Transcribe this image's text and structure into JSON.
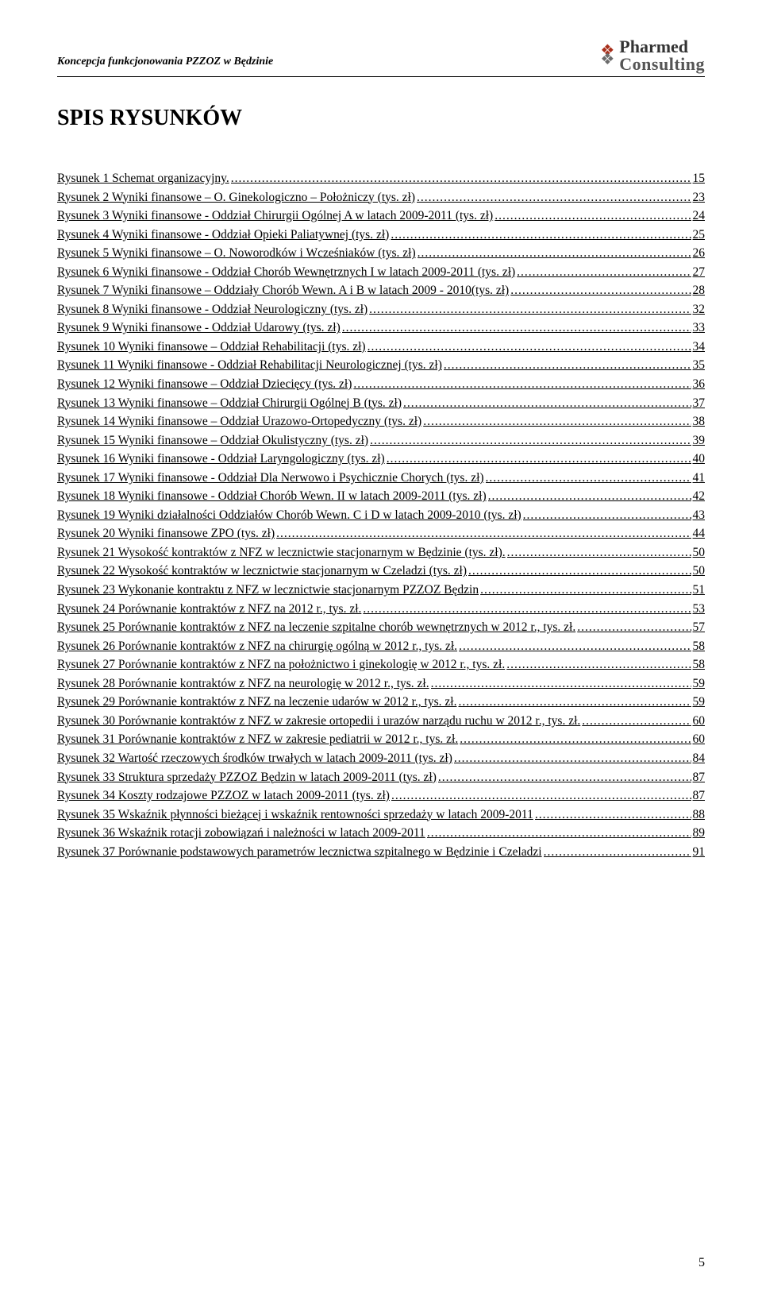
{
  "header": {
    "left": "Koncepcja funkcjonowania PZZOZ w Będzinie",
    "logo_line1": "Pharmed",
    "logo_line2": "Consulting",
    "chevron_color_top": "#a82f1b",
    "chevron_color_bottom": "#6b6b6b"
  },
  "title": "SPIS RYSUNKÓW",
  "toc": [
    {
      "label": "Rysunek 1 Schemat organizacyjny.",
      "page": "15"
    },
    {
      "label": "Rysunek 2 Wyniki finansowe – O. Ginekologiczno – Położniczy (tys. zł)",
      "page": "23"
    },
    {
      "label": "Rysunek 3 Wyniki finansowe - Oddział Chirurgii Ogólnej A w latach 2009-2011 (tys. zł)",
      "page": "24"
    },
    {
      "label": "Rysunek 4 Wyniki finansowe - Oddział Opieki Paliatywnej (tys. zł)",
      "page": "25"
    },
    {
      "label": "Rysunek 5 Wyniki finansowe – O. Noworodków i Wcześniaków (tys. zł)",
      "page": "26"
    },
    {
      "label": "Rysunek 6 Wyniki finansowe - Oddział Chorób Wewnętrznych I w latach 2009-2011 (tys. zł)",
      "page": "27"
    },
    {
      "label": "Rysunek 7 Wyniki finansowe – Oddziały Chorób Wewn. A i B w latach 2009 - 2010(tys. zł)",
      "page": "28"
    },
    {
      "label": "Rysunek 8 Wyniki finansowe - Oddział Neurologiczny (tys. zł)",
      "page": "32"
    },
    {
      "label": "Rysunek 9 Wyniki finansowe - Oddział Udarowy (tys. zł)",
      "page": "33"
    },
    {
      "label": "Rysunek 10 Wyniki finansowe – Oddział Rehabilitacji (tys. zł)",
      "page": "34"
    },
    {
      "label": "Rysunek 11 Wyniki finansowe - Oddział Rehabilitacji Neurologicznej (tys. zł)",
      "page": "35"
    },
    {
      "label": "Rysunek 12 Wyniki finansowe – Oddział Dziecięcy (tys. zł)",
      "page": "36"
    },
    {
      "label": "Rysunek 13 Wyniki finansowe – Oddział Chirurgii Ogólnej B (tys. zł)",
      "page": "37"
    },
    {
      "label": "Rysunek 14 Wyniki finansowe – Oddział Urazowo-Ortopedyczny (tys. zł)",
      "page": "38"
    },
    {
      "label": "Rysunek 15 Wyniki finansowe – Oddział Okulistyczny (tys. zł)",
      "page": "39"
    },
    {
      "label": "Rysunek 16 Wyniki finansowe - Oddział Laryngologiczny (tys. zł)",
      "page": "40"
    },
    {
      "label": "Rysunek 17 Wyniki finansowe - Oddział Dla Nerwowo i Psychicznie Chorych (tys. zł)",
      "page": "41"
    },
    {
      "label": "Rysunek 18 Wyniki finansowe - Oddział Chorób Wewn. II w latach 2009-2011 (tys. zł)",
      "page": "42"
    },
    {
      "label": "Rysunek 19 Wyniki działalności Oddziałów Chorób Wewn. C i D w latach 2009-2010 (tys. zł)",
      "page": "43"
    },
    {
      "label": "Rysunek 20 Wyniki finansowe ZPO (tys. zł)",
      "page": "44"
    },
    {
      "label": "Rysunek 21 Wysokość kontraktów z NFZ w lecznictwie stacjonarnym w Będzinie (tys. zł).",
      "page": "50"
    },
    {
      "label": "Rysunek 22 Wysokość kontraktów w lecznictwie stacjonarnym w Czeladzi (tys. zł)",
      "page": "50"
    },
    {
      "label": "Rysunek 23 Wykonanie kontraktu z NFZ w lecznictwie stacjonarnym PZZOZ Będzin",
      "page": "51"
    },
    {
      "label": "Rysunek 24 Porównanie kontraktów z NFZ na 2012 r., tys. zł.",
      "page": "53"
    },
    {
      "label": "Rysunek 25 Porównanie kontraktów z NFZ na leczenie szpitalne chorób wewnętrznych w 2012 r., tys. zł.",
      "page": "57"
    },
    {
      "label": "Rysunek 26 Porównanie kontraktów z NFZ na chirurgię ogólną w 2012 r., tys. zł.",
      "page": "58"
    },
    {
      "label": "Rysunek 27 Porównanie kontraktów z NFZ na położnictwo i ginekologię w 2012 r., tys. zł.",
      "page": "58"
    },
    {
      "label": "Rysunek 28 Porównanie kontraktów z NFZ na neurologię w 2012 r., tys. zł.",
      "page": "59"
    },
    {
      "label": "Rysunek 29 Porównanie kontraktów z NFZ na leczenie udarów w 2012 r., tys. zł.",
      "page": "59"
    },
    {
      "label": "Rysunek 30 Porównanie kontraktów z NFZ w zakresie ortopedii i urazów narządu ruchu w 2012 r., tys. zł.",
      "page": "60"
    },
    {
      "label": "Rysunek 31 Porównanie kontraktów z NFZ w zakresie pediatrii w 2012 r., tys. zł.",
      "page": "60"
    },
    {
      "label": "Rysunek 32 Wartość rzeczowych środków trwałych w latach 2009-2011 (tys. zł)",
      "page": "84"
    },
    {
      "label": "Rysunek 33 Struktura sprzedaży PZZOZ Będzin w latach 2009-2011 (tys. zł)",
      "page": "87"
    },
    {
      "label": "Rysunek 34 Koszty rodzajowe PZZOZ w latach 2009-2011 (tys. zł)",
      "page": "87"
    },
    {
      "label": "Rysunek 35 Wskaźnik płynności bieżącej i wskaźnik rentowności sprzedaży w latach 2009-2011",
      "page": "88"
    },
    {
      "label": "Rysunek 36 Wskaźnik rotacji zobowiązań i należności w latach 2009-2011",
      "page": "89"
    },
    {
      "label": "Rysunek 37 Porównanie podstawowych parametrów lecznictwa szpitalnego w Będzinie i Czeladzi",
      "page": "91"
    }
  ],
  "page_number": "5"
}
